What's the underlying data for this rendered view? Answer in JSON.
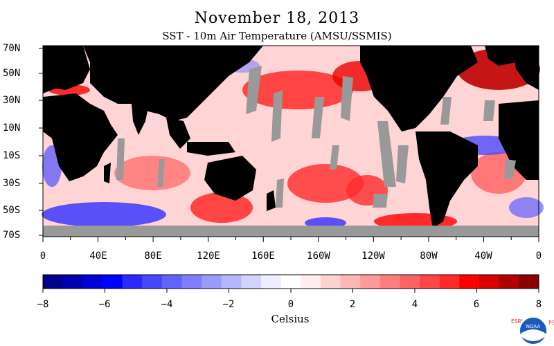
{
  "header": {
    "title": "November 18, 2013",
    "subtitle": "SST - 10m Air Temperature (AMSU/SSMIS)"
  },
  "map": {
    "lat_labels": [
      "70N",
      "50N",
      "30N",
      "10N",
      "10S",
      "30S",
      "50S",
      "70S"
    ],
    "lon_labels": [
      "0",
      "40E",
      "80E",
      "120E",
      "160E",
      "160W",
      "120W",
      "80W",
      "40W",
      "0"
    ],
    "colors": {
      "land": "#000000",
      "missing": "#999999",
      "positive": "#ff0000",
      "negative": "#0000ff"
    }
  },
  "colorbar": {
    "min": -8,
    "max": 8,
    "tick_labels": [
      "−8",
      "−6",
      "−4",
      "−2",
      "0",
      "2",
      "4",
      "6",
      "8"
    ],
    "unit_label": "Celsius",
    "colors": [
      "#00008b",
      "#0000b0",
      "#0000d8",
      "#0000ff",
      "#2a2aff",
      "#4646ff",
      "#6262ff",
      "#7e7eff",
      "#9a9aff",
      "#b6b6ff",
      "#d2d2ff",
      "#eeeeff",
      "#ffffff",
      "#ffeeee",
      "#ffd2d2",
      "#ffb6b6",
      "#ff9a9a",
      "#ff7e7e",
      "#ff6262",
      "#ff4646",
      "#ff2a2a",
      "#ff0000",
      "#d80000",
      "#b00000",
      "#8b0000"
    ]
  },
  "logo": {
    "left_letters": "ESRL",
    "right_letters": "PSD",
    "emblem_text": "NOAA"
  }
}
